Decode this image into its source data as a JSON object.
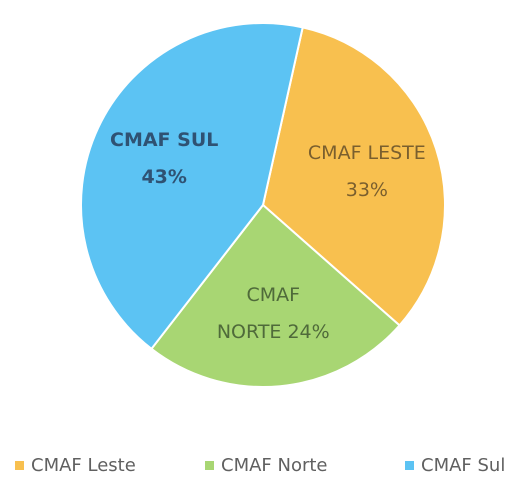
{
  "chart_data": {
    "type": "pie",
    "categories": [
      "CMAF Leste",
      "CMAF Norte",
      "CMAF Sul"
    ],
    "values": [
      33,
      24,
      43
    ],
    "value_labels": [
      [
        "CMAF LESTE",
        "33%"
      ],
      [
        "CMAF",
        "NORTE 24%"
      ],
      [
        "CMAF SUL",
        "43%"
      ]
    ],
    "colors": [
      "#f8c04f",
      "#a8d673",
      "#5cc3f3"
    ],
    "legend": "bottom"
  }
}
